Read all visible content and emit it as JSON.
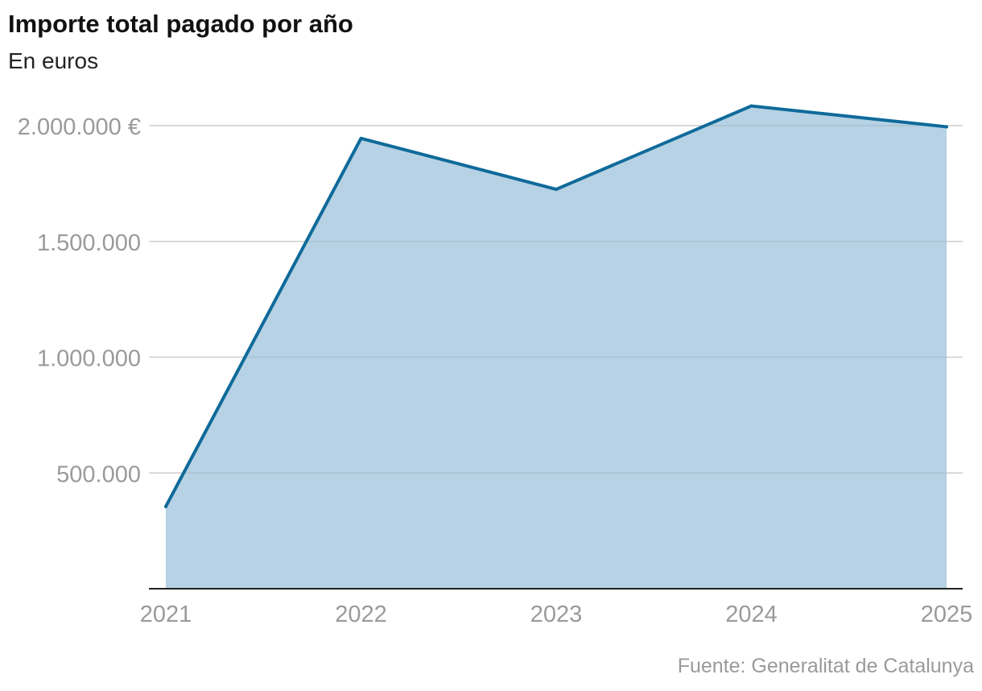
{
  "chart_data": {
    "type": "area",
    "title": "Importe total pagado por año",
    "subtitle": "En euros",
    "source": "Fuente: Generalitat de Catalunya",
    "x": [
      2021,
      2022,
      2023,
      2024,
      2025
    ],
    "x_tick_labels": [
      "2021",
      "2022",
      "2023",
      "2024",
      "2025"
    ],
    "values": [
      355000,
      1945000,
      1725000,
      2085000,
      1995000
    ],
    "ylim": [
      0,
      2000000
    ],
    "y_ticks": [
      500000,
      1000000,
      1500000,
      2000000
    ],
    "y_tick_labels": [
      "500.000",
      "1.000.000",
      "1.500.000",
      "2.000.000 €"
    ],
    "grid": true,
    "colors": {
      "line": "#0f6a9a",
      "fill": "#b5d1e3",
      "grid": "#dddddd",
      "axis": "#222222"
    }
  }
}
